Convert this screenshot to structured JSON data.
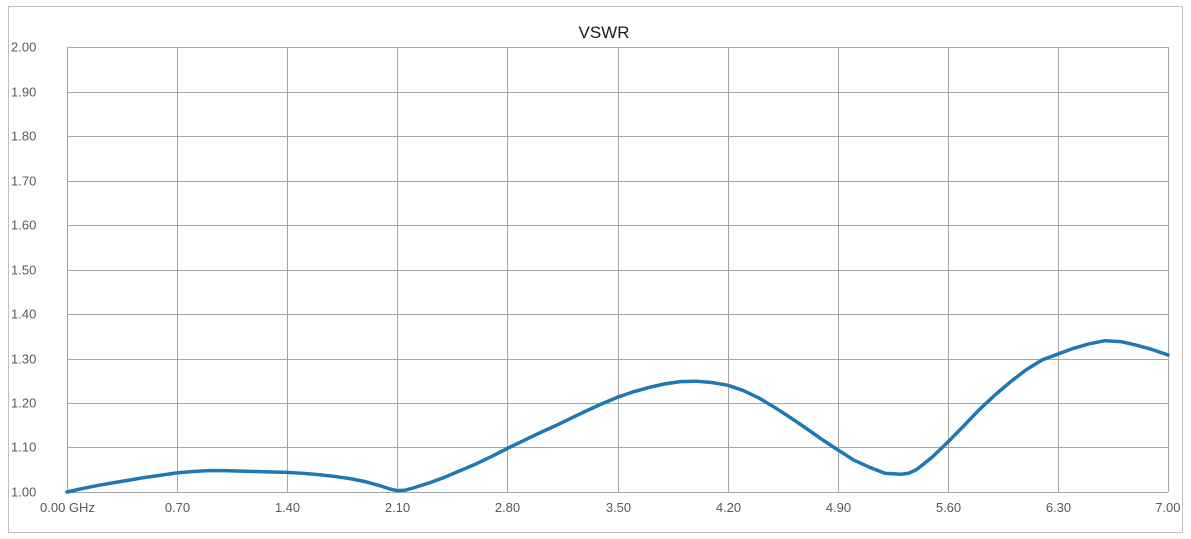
{
  "chart_data": {
    "type": "line",
    "title": "VSWR",
    "xlabel": "",
    "ylabel": "",
    "xlim": [
      0,
      7
    ],
    "ylim": [
      1.0,
      2.0
    ],
    "x_tick_labels": [
      "0.00 GHz",
      "0.70",
      "1.40",
      "2.10",
      "2.80",
      "3.50",
      "4.20",
      "4.90",
      "5.60",
      "6.30",
      "7.00"
    ],
    "y_tick_labels": [
      "1.00",
      "1.10",
      "1.20",
      "1.30",
      "1.40",
      "1.50",
      "1.60",
      "1.70",
      "1.80",
      "1.90",
      "2.00"
    ],
    "grid": true,
    "legend": "none",
    "series_color": "#1f77b4",
    "series": [
      {
        "x": [
          0.0,
          0.1,
          0.2,
          0.3,
          0.4,
          0.5,
          0.6,
          0.7,
          0.8,
          0.9,
          1.0,
          1.1,
          1.2,
          1.3,
          1.4,
          1.5,
          1.6,
          1.7,
          1.8,
          1.9,
          2.0,
          2.05,
          2.1,
          2.15,
          2.2,
          2.3,
          2.4,
          2.5,
          2.6,
          2.7,
          2.8,
          2.9,
          3.0,
          3.1,
          3.2,
          3.3,
          3.4,
          3.5,
          3.6,
          3.7,
          3.8,
          3.9,
          4.0,
          4.1,
          4.2,
          4.3,
          4.4,
          4.5,
          4.6,
          4.7,
          4.8,
          4.9,
          5.0,
          5.1,
          5.2,
          5.3,
          5.35,
          5.4,
          5.5,
          5.6,
          5.7,
          5.8,
          5.9,
          6.0,
          6.1,
          6.2,
          6.3,
          6.4,
          6.5,
          6.6,
          6.7,
          6.8,
          6.9,
          7.0
        ],
        "values": [
          1.0,
          1.008,
          1.015,
          1.021,
          1.027,
          1.033,
          1.038,
          1.043,
          1.046,
          1.048,
          1.048,
          1.047,
          1.046,
          1.045,
          1.044,
          1.042,
          1.039,
          1.035,
          1.03,
          1.023,
          1.013,
          1.007,
          1.003,
          1.004,
          1.009,
          1.02,
          1.033,
          1.048,
          1.063,
          1.08,
          1.098,
          1.115,
          1.132,
          1.148,
          1.165,
          1.182,
          1.198,
          1.213,
          1.225,
          1.235,
          1.243,
          1.248,
          1.249,
          1.246,
          1.24,
          1.228,
          1.211,
          1.19,
          1.167,
          1.143,
          1.118,
          1.095,
          1.072,
          1.056,
          1.042,
          1.04,
          1.042,
          1.05,
          1.078,
          1.112,
          1.148,
          1.185,
          1.218,
          1.248,
          1.275,
          1.297,
          1.31,
          1.323,
          1.333,
          1.34,
          1.338,
          1.33,
          1.32,
          1.308
        ]
      }
    ]
  }
}
